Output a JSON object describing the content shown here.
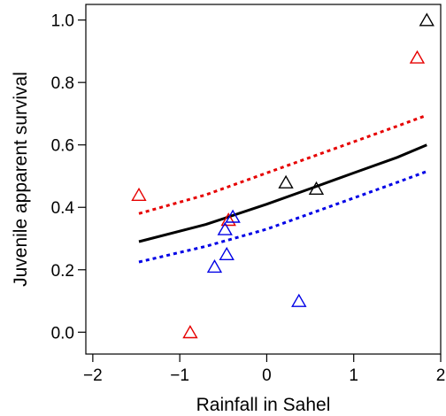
{
  "chart_data": {
    "type": "scatter",
    "title": "",
    "xlabel": "Rainfall in Sahel",
    "ylabel": "Juvenile apparent survival",
    "xlim": [
      -2.08,
      2.0
    ],
    "ylim": [
      -0.07,
      1.05
    ],
    "xticks": [
      -2,
      -1,
      0,
      1,
      2
    ],
    "xtick_labels": [
      "−2",
      "−1",
      "0",
      "1",
      "2"
    ],
    "yticks": [
      0.0,
      0.2,
      0.4,
      0.6,
      0.8,
      1.0
    ],
    "ytick_labels": [
      "0.0",
      "0.2",
      "0.4",
      "0.6",
      "0.8",
      "1.0"
    ],
    "grid": false,
    "legend": "none",
    "marker": "open-triangle",
    "series": [
      {
        "color": "#000000",
        "points": [
          {
            "x": 0.22,
            "y": 0.48
          },
          {
            "x": 0.57,
            "y": 0.46
          },
          {
            "x": 1.84,
            "y": 1.0
          }
        ]
      },
      {
        "color": "#e60000",
        "points": [
          {
            "x": -1.47,
            "y": 0.44
          },
          {
            "x": -0.88,
            "y": 0.0
          },
          {
            "x": -0.44,
            "y": 0.36
          },
          {
            "x": 1.73,
            "y": 0.88
          }
        ]
      },
      {
        "color": "#0000e6",
        "points": [
          {
            "x": -0.6,
            "y": 0.21
          },
          {
            "x": -0.48,
            "y": 0.33
          },
          {
            "x": -0.46,
            "y": 0.25
          },
          {
            "x": -0.39,
            "y": 0.37
          },
          {
            "x": 0.37,
            "y": 0.1
          }
        ]
      }
    ],
    "lines": [
      {
        "color": "#000000",
        "style": "solid",
        "x": [
          -1.47,
          -0.7,
          0.0,
          0.5,
          1.0,
          1.5,
          1.84
        ],
        "y": [
          0.29,
          0.345,
          0.41,
          0.46,
          0.51,
          0.56,
          0.6
        ]
      },
      {
        "color": "#e60000",
        "style": "dotted",
        "x": [
          -1.47,
          -0.7,
          0.0,
          0.5,
          1.0,
          1.5,
          1.84
        ],
        "y": [
          0.38,
          0.44,
          0.51,
          0.56,
          0.61,
          0.66,
          0.695
        ]
      },
      {
        "color": "#0000e6",
        "style": "dotted",
        "x": [
          -1.47,
          -0.7,
          0.0,
          0.5,
          1.0,
          1.5,
          1.84
        ],
        "y": [
          0.225,
          0.275,
          0.33,
          0.38,
          0.43,
          0.48,
          0.515
        ]
      }
    ]
  }
}
